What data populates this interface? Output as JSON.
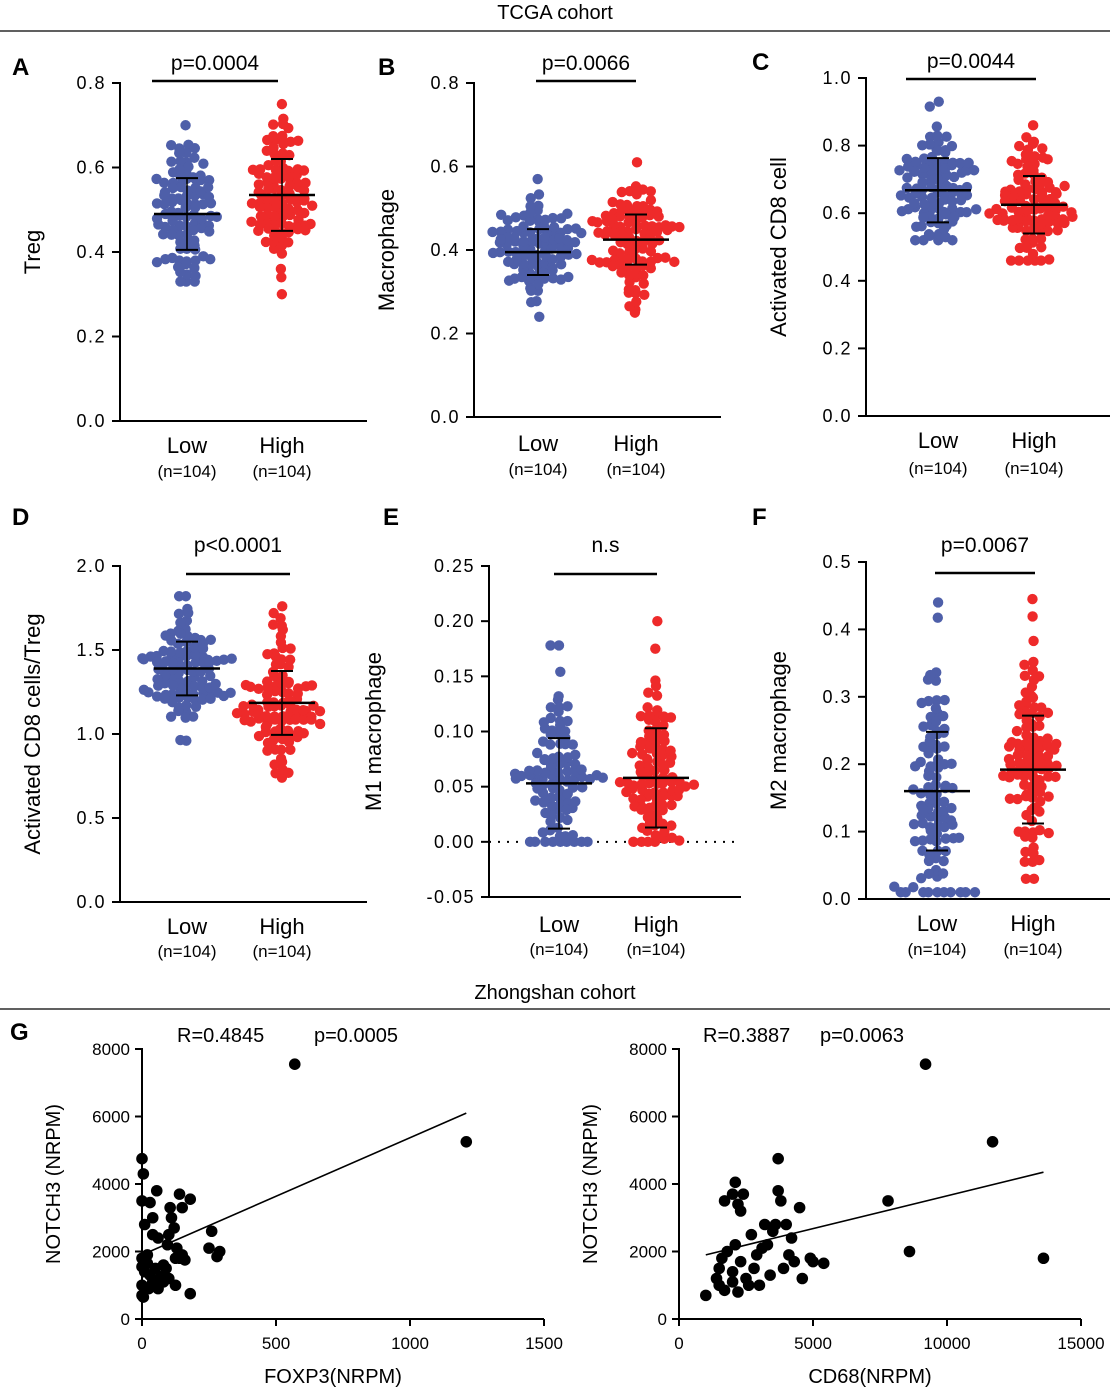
{
  "headers": {
    "tcga": "TCGA cohort",
    "zhongshan": "Zhongshan cohort"
  },
  "colors": {
    "low": "#4e5fa9",
    "high": "#ee2a2a",
    "point": "#000000"
  },
  "chart_data": [
    {
      "panel": "A",
      "type": "scatter",
      "ylabel": "Treg",
      "ylim": [
        0,
        0.8
      ],
      "yticks": [
        0,
        0.2,
        0.4,
        0.6,
        0.8
      ],
      "ytick_labels": [
        "0.0",
        "0.2",
        "0.4",
        "0.6",
        "0.8"
      ],
      "pvalue": "p=0.0004",
      "groups": [
        {
          "label": "Low",
          "n": "(n=104)",
          "mean": 0.49,
          "sd": 0.085,
          "min": 0.33,
          "max": 0.7,
          "count": 104,
          "color_key": "low"
        },
        {
          "label": "High",
          "n": "(n=104)",
          "mean": 0.535,
          "sd": 0.085,
          "min": 0.3,
          "max": 0.75,
          "count": 104,
          "color_key": "high"
        }
      ]
    },
    {
      "panel": "B",
      "type": "scatter",
      "ylabel": "Macrophage",
      "ylim": [
        0,
        0.8
      ],
      "yticks": [
        0,
        0.2,
        0.4,
        0.6,
        0.8
      ],
      "ytick_labels": [
        "0.0",
        "0.2",
        "0.4",
        "0.6",
        "0.8"
      ],
      "pvalue": "p=0.0066",
      "groups": [
        {
          "label": "Low",
          "n": "(n=104)",
          "mean": 0.395,
          "sd": 0.055,
          "min": 0.24,
          "max": 0.57,
          "count": 104,
          "color_key": "low"
        },
        {
          "label": "High",
          "n": "(n=104)",
          "mean": 0.425,
          "sd": 0.06,
          "min": 0.25,
          "max": 0.61,
          "count": 104,
          "color_key": "high"
        }
      ]
    },
    {
      "panel": "C",
      "type": "scatter",
      "ylabel": "Activated CD8 cell",
      "ylim": [
        0,
        1.0
      ],
      "yticks": [
        0,
        0.2,
        0.4,
        0.6,
        0.8,
        1.0
      ],
      "ytick_labels": [
        "0.0",
        "0.2",
        "0.4",
        "0.6",
        "0.8",
        "1.0"
      ],
      "pvalue": "p=0.0044",
      "groups": [
        {
          "label": "Low",
          "n": "(n=104)",
          "mean": 0.668,
          "sd": 0.095,
          "min": 0.52,
          "max": 0.93,
          "count": 104,
          "color_key": "low"
        },
        {
          "label": "High",
          "n": "(n=104)",
          "mean": 0.625,
          "sd": 0.085,
          "min": 0.46,
          "max": 0.86,
          "count": 104,
          "color_key": "high"
        }
      ]
    },
    {
      "panel": "D",
      "type": "scatter",
      "ylabel": "Activated CD8 cells/Treg",
      "ylim": [
        0,
        2.0
      ],
      "yticks": [
        0,
        0.5,
        1.0,
        1.5,
        2.0
      ],
      "ytick_labels": [
        "0.0",
        "0.5",
        "1.0",
        "1.5",
        "2.0"
      ],
      "pvalue": "p<0.0001",
      "groups": [
        {
          "label": "Low",
          "n": "(n=104)",
          "mean": 1.39,
          "sd": 0.16,
          "min": 0.96,
          "max": 1.82,
          "count": 104,
          "color_key": "low"
        },
        {
          "label": "High",
          "n": "(n=104)",
          "mean": 1.185,
          "sd": 0.19,
          "min": 0.74,
          "max": 1.76,
          "count": 104,
          "color_key": "high"
        }
      ]
    },
    {
      "panel": "E",
      "type": "scatter",
      "ylabel": "M1 macrophage",
      "ylim": [
        -0.05,
        0.25
      ],
      "yticks": [
        -0.05,
        0,
        0.05,
        0.1,
        0.15,
        0.2,
        0.25
      ],
      "ytick_labels": [
        "-0.05",
        "0.00",
        "0.05",
        "0.10",
        "0.15",
        "0.20",
        "0.25"
      ],
      "pvalue": "n.s",
      "zero_line": true,
      "groups": [
        {
          "label": "Low",
          "n": "(n=104)",
          "mean": 0.053,
          "sd": 0.041,
          "min": 0.0,
          "max": 0.178,
          "count": 104,
          "color_key": "low"
        },
        {
          "label": "High",
          "n": "(n=104)",
          "mean": 0.058,
          "sd": 0.045,
          "min": 0.0,
          "max": 0.2,
          "count": 104,
          "color_key": "high"
        }
      ]
    },
    {
      "panel": "F",
      "type": "scatter",
      "ylabel": "M2 macrophage",
      "ylim": [
        0,
        0.5
      ],
      "yticks": [
        0,
        0.1,
        0.2,
        0.3,
        0.4,
        0.5
      ],
      "ytick_labels": [
        "0.0",
        "0.1",
        "0.2",
        "0.3",
        "0.4",
        "0.5"
      ],
      "pvalue": "p=0.0067",
      "groups": [
        {
          "label": "Low",
          "n": "(n=104)",
          "mean": 0.16,
          "sd": 0.088,
          "min": 0.01,
          "max": 0.44,
          "count": 104,
          "color_key": "low"
        },
        {
          "label": "High",
          "n": "(n=104)",
          "mean": 0.192,
          "sd": 0.08,
          "min": 0.03,
          "max": 0.445,
          "count": 104,
          "color_key": "high"
        }
      ]
    },
    {
      "panel": "G",
      "type": "scatter",
      "xlabel": "FOXP3(NRPM)",
      "ylabel": "NOTCH3 (NRPM)",
      "xlim": [
        0,
        1500
      ],
      "ylim": [
        0,
        8000
      ],
      "xticks": [
        0,
        500,
        1000,
        1500
      ],
      "yticks": [
        0,
        2000,
        4000,
        6000,
        8000
      ],
      "stat": "R=0.4845",
      "pvalue": "p=0.0005",
      "fit": [
        [
          0,
          1900
        ],
        [
          1210,
          6100
        ]
      ],
      "points": [
        [
          0,
          4750
        ],
        [
          5,
          4300
        ],
        [
          0,
          3500
        ],
        [
          30,
          3450
        ],
        [
          55,
          3800
        ],
        [
          10,
          2800
        ],
        [
          40,
          2500
        ],
        [
          60,
          2400
        ],
        [
          20,
          1900
        ],
        [
          0,
          1800
        ],
        [
          20,
          1650
        ],
        [
          0,
          1550
        ],
        [
          50,
          1500
        ],
        [
          10,
          1400
        ],
        [
          30,
          1300
        ],
        [
          70,
          1250
        ],
        [
          40,
          1100
        ],
        [
          0,
          1000
        ],
        [
          25,
          900
        ],
        [
          0,
          700
        ],
        [
          5,
          650
        ],
        [
          60,
          900
        ],
        [
          80,
          1600
        ],
        [
          95,
          2200
        ],
        [
          100,
          2500
        ],
        [
          105,
          3300
        ],
        [
          110,
          3000
        ],
        [
          120,
          2700
        ],
        [
          130,
          2100
        ],
        [
          125,
          1800
        ],
        [
          140,
          1800
        ],
        [
          150,
          1900
        ],
        [
          160,
          1750
        ],
        [
          140,
          3700
        ],
        [
          150,
          3300
        ],
        [
          180,
          3550
        ],
        [
          100,
          1200
        ],
        [
          125,
          1000
        ],
        [
          90,
          1500
        ],
        [
          180,
          750
        ],
        [
          80,
          1100
        ],
        [
          40,
          3000
        ],
        [
          260,
          2600
        ],
        [
          250,
          2100
        ],
        [
          280,
          1850
        ],
        [
          290,
          2000
        ],
        [
          570,
          7550
        ],
        [
          1210,
          5250
        ]
      ]
    },
    {
      "panel": "G",
      "type": "scatter",
      "xlabel": "CD68(NRPM)",
      "ylabel": "NOTCH3 (NRPM)",
      "xlim": [
        0,
        15000
      ],
      "ylim": [
        0,
        8000
      ],
      "xticks": [
        0,
        5000,
        10000,
        15000
      ],
      "yticks": [
        0,
        2000,
        4000,
        6000,
        8000
      ],
      "stat": "R=0.3887",
      "pvalue": "p=0.0063",
      "fit": [
        [
          1000,
          1900
        ],
        [
          13600,
          4350
        ]
      ],
      "points": [
        [
          1000,
          700
        ],
        [
          1400,
          1200
        ],
        [
          1500,
          1500
        ],
        [
          1600,
          1800
        ],
        [
          1800,
          2000
        ],
        [
          1500,
          1000
        ],
        [
          1700,
          850
        ],
        [
          2000,
          1100
        ],
        [
          2200,
          800
        ],
        [
          2000,
          1400
        ],
        [
          2300,
          1700
        ],
        [
          2100,
          2200
        ],
        [
          1700,
          3500
        ],
        [
          2000,
          3700
        ],
        [
          2100,
          4050
        ],
        [
          2200,
          3400
        ],
        [
          2300,
          3200
        ],
        [
          2400,
          3700
        ],
        [
          2700,
          2500
        ],
        [
          2800,
          1500
        ],
        [
          2900,
          1900
        ],
        [
          3000,
          1000
        ],
        [
          3200,
          2800
        ],
        [
          3300,
          2200
        ],
        [
          3500,
          2600
        ],
        [
          3600,
          2800
        ],
        [
          3700,
          3800
        ],
        [
          3700,
          4750
        ],
        [
          3800,
          3500
        ],
        [
          3900,
          1500
        ],
        [
          4000,
          2800
        ],
        [
          4100,
          1900
        ],
        [
          4300,
          1700
        ],
        [
          4500,
          3300
        ],
        [
          4600,
          1200
        ],
        [
          4900,
          1800
        ],
        [
          5000,
          1700
        ],
        [
          5400,
          1650
        ],
        [
          4200,
          2400
        ],
        [
          3400,
          1300
        ],
        [
          2500,
          1200
        ],
        [
          3100,
          2100
        ],
        [
          7800,
          3500
        ],
        [
          8600,
          2000
        ],
        [
          9200,
          7550
        ],
        [
          11700,
          5250
        ],
        [
          13600,
          1800
        ],
        [
          2600,
          1000
        ]
      ]
    }
  ]
}
